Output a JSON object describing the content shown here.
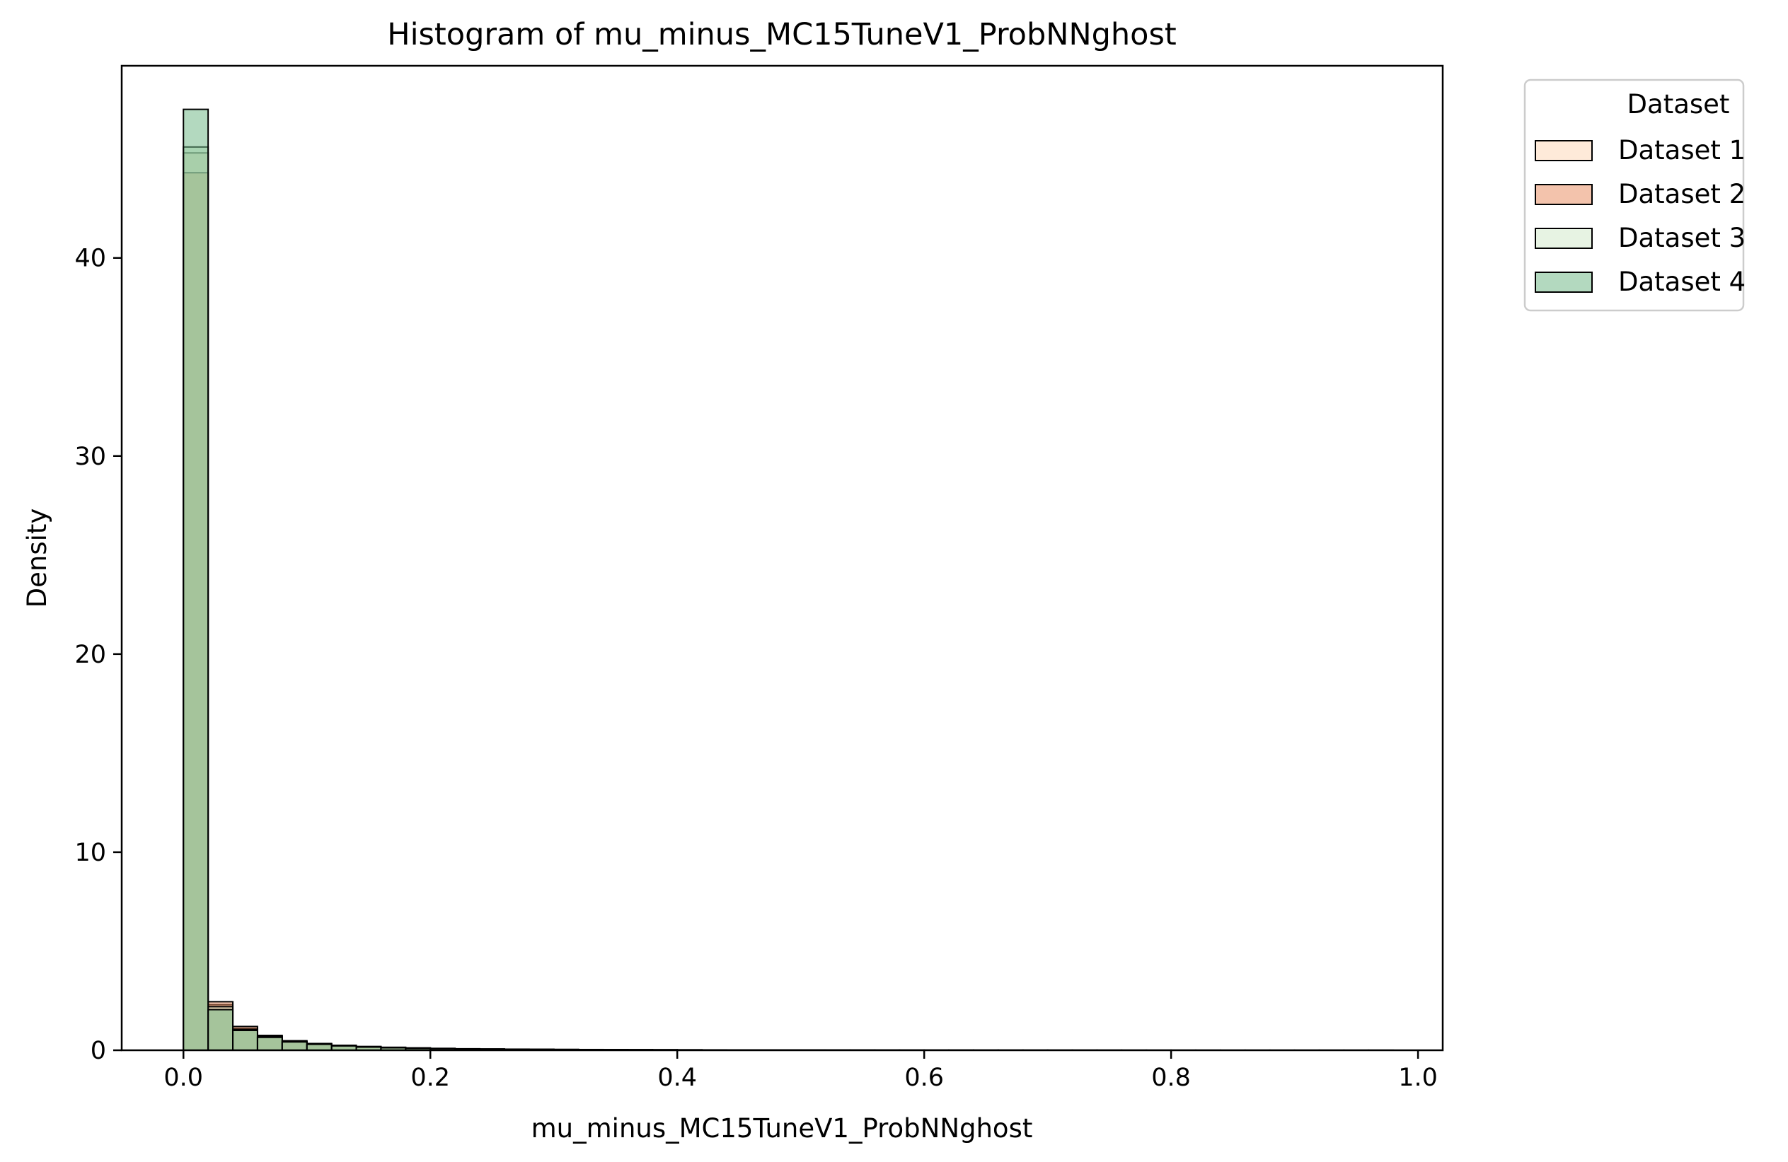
{
  "chart_data": {
    "type": "histogram",
    "title": "Histogram of mu_minus_MC15TuneV1_ProbNNghost",
    "xlabel": "mu_minus_MC15TuneV1_ProbNNghost",
    "ylabel": "Density",
    "xlim": [
      -0.05,
      1.02
    ],
    "ylim": [
      0,
      49.7
    ],
    "x_ticks": [
      0.0,
      0.2,
      0.4,
      0.6,
      0.8,
      1.0
    ],
    "x_tick_labels": [
      "0.0",
      "0.2",
      "0.4",
      "0.6",
      "0.8",
      "1.0"
    ],
    "y_ticks": [
      0,
      10,
      20,
      30,
      40
    ],
    "y_tick_labels": [
      "0",
      "10",
      "20",
      "30",
      "40"
    ],
    "grid": false,
    "legend": {
      "title": "Dataset",
      "placement": "outside-top-right"
    },
    "bin_edges": [
      0.0,
      0.02,
      0.04,
      0.06,
      0.08,
      0.1,
      0.12,
      0.14,
      0.16,
      0.18,
      0.2,
      0.22,
      0.24,
      0.26,
      0.28,
      0.3,
      0.32,
      0.34,
      0.36,
      0.38,
      0.4,
      0.42,
      0.44,
      0.46,
      0.48,
      0.5,
      0.52,
      0.54,
      0.56,
      0.58,
      0.6,
      0.62,
      0.64,
      0.66,
      0.68,
      0.7,
      0.72,
      0.74,
      0.76,
      0.78,
      0.8,
      0.82,
      0.84,
      0.86,
      0.88,
      0.9,
      0.92,
      0.94,
      0.96,
      0.98
    ],
    "series": [
      {
        "name": "Dataset 1",
        "color": "#fdd5b4",
        "opacity": 0.5,
        "values": [
          45.3,
          2.3,
          1.1,
          0.7,
          0.45,
          0.32,
          0.24,
          0.18,
          0.14,
          0.11,
          0.09,
          0.07,
          0.06,
          0.05,
          0.045,
          0.04,
          0.035,
          0.03,
          0.027,
          0.024,
          0.021,
          0.018,
          0.015,
          0.012,
          0.01,
          0.009,
          0.008,
          0.007,
          0.006,
          0.005,
          0.005,
          0.004,
          0.004,
          0.003,
          0.003,
          0.003,
          0.002,
          0.002,
          0.002,
          0.002,
          0.002,
          0.001,
          0.001,
          0.001,
          0.001,
          0.001,
          0.001,
          0.001,
          0.001
        ]
      },
      {
        "name": "Dataset 2",
        "color": "#e8885a",
        "opacity": 0.5,
        "values": [
          44.3,
          2.45,
          1.2,
          0.75,
          0.48,
          0.34,
          0.25,
          0.19,
          0.15,
          0.12,
          0.095,
          0.075,
          0.065,
          0.055,
          0.048,
          0.042,
          0.037,
          0.032,
          0.028,
          0.025,
          0.022,
          0.019,
          0.016,
          0.013,
          0.011,
          0.01,
          0.009,
          0.008,
          0.007,
          0.006,
          0.005,
          0.005,
          0.004,
          0.004,
          0.003,
          0.003,
          0.003,
          0.002,
          0.002,
          0.002,
          0.002,
          0.002,
          0.001,
          0.001,
          0.001,
          0.001,
          0.001,
          0.001,
          0.001
        ]
      },
      {
        "name": "Dataset 3",
        "color": "#cfe8c8",
        "opacity": 0.5,
        "values": [
          45.6,
          2.2,
          1.05,
          0.68,
          0.44,
          0.31,
          0.23,
          0.17,
          0.13,
          0.1,
          0.085,
          0.068,
          0.058,
          0.048,
          0.042,
          0.037,
          0.032,
          0.028,
          0.025,
          0.022,
          0.019,
          0.016,
          0.013,
          0.011,
          0.009,
          0.008,
          0.007,
          0.006,
          0.005,
          0.005,
          0.004,
          0.004,
          0.003,
          0.003,
          0.003,
          0.002,
          0.002,
          0.002,
          0.002,
          0.001,
          0.001,
          0.001,
          0.001,
          0.001,
          0.001,
          0.001,
          0.001,
          0.001,
          0.001
        ]
      },
      {
        "name": "Dataset 4",
        "color": "#74b98a",
        "opacity": 0.55,
        "values": [
          47.5,
          2.05,
          1.0,
          0.65,
          0.42,
          0.3,
          0.22,
          0.16,
          0.125,
          0.098,
          0.08,
          0.065,
          0.055,
          0.046,
          0.04,
          0.035,
          0.03,
          0.026,
          0.023,
          0.02,
          0.018,
          0.015,
          0.012,
          0.01,
          0.009,
          0.008,
          0.007,
          0.006,
          0.005,
          0.004,
          0.004,
          0.003,
          0.003,
          0.003,
          0.002,
          0.002,
          0.002,
          0.002,
          0.001,
          0.001,
          0.001,
          0.001,
          0.001,
          0.001,
          0.001,
          0.001,
          0.001,
          0.001,
          0.001
        ]
      }
    ]
  }
}
